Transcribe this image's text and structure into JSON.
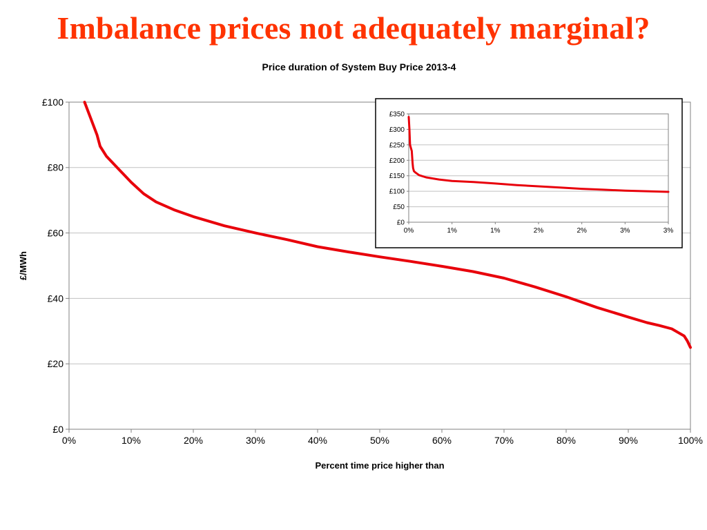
{
  "slide": {
    "title": "Imbalance prices not adequately marginal?"
  },
  "chart_data": [
    {
      "type": "line",
      "title": "Price duration of System Buy Price 2013-4",
      "xlabel": "Percent time price higher than",
      "ylabel": "£/MWh",
      "xlim": [
        0,
        100
      ],
      "ylim": [
        0,
        100
      ],
      "x_ticks": [
        "0%",
        "10%",
        "20%",
        "30%",
        "40%",
        "50%",
        "60%",
        "70%",
        "80%",
        "90%",
        "100%"
      ],
      "y_ticks": [
        "£0",
        "£20",
        "£40",
        "£60",
        "£80",
        "£100"
      ],
      "grid": true,
      "legend": "none",
      "series": [
        {
          "color": "#e8000b",
          "x": [
            2.5,
            3.5,
            4.5,
            5,
            6,
            8,
            10,
            12,
            14,
            17,
            20,
            25,
            30,
            35,
            40,
            45,
            50,
            55,
            60,
            65,
            70,
            75,
            80,
            85,
            90,
            93,
            95,
            97,
            98,
            99,
            99.5,
            100
          ],
          "y": [
            100,
            95,
            90,
            86.5,
            83.5,
            79.5,
            75.5,
            72,
            69.5,
            67,
            65,
            62.2,
            60,
            58,
            55.8,
            54.2,
            52.7,
            51.3,
            49.8,
            48.2,
            46.2,
            43.5,
            40.5,
            37.2,
            34.3,
            32.6,
            31.7,
            30.7,
            29.6,
            28.5,
            27,
            25
          ]
        }
      ]
    },
    {
      "type": "line",
      "title": "",
      "xlabel": "",
      "ylabel": "",
      "xlim": [
        0,
        3
      ],
      "ylim": [
        0,
        350
      ],
      "x_ticks": [
        "0%",
        "1%",
        "1%",
        "2%",
        "2%",
        "3%",
        "3%"
      ],
      "y_ticks": [
        "£0",
        "£50",
        "£100",
        "£150",
        "£200",
        "£250",
        "£300",
        "£350"
      ],
      "grid": true,
      "legend": "none",
      "series": [
        {
          "color": "#e8000b",
          "x": [
            0,
            0.008,
            0.015,
            0.025,
            0.035,
            0.045,
            0.05,
            0.06,
            0.08,
            0.12,
            0.2,
            0.35,
            0.5,
            0.75,
            1,
            1.25,
            1.5,
            1.75,
            2,
            2.25,
            2.5,
            2.75,
            3
          ],
          "y": [
            340,
            300,
            250,
            240,
            230,
            190,
            175,
            165,
            160,
            152,
            145,
            138,
            133,
            130,
            125,
            120,
            116,
            112,
            108,
            105,
            102,
            100,
            98
          ]
        }
      ]
    }
  ]
}
